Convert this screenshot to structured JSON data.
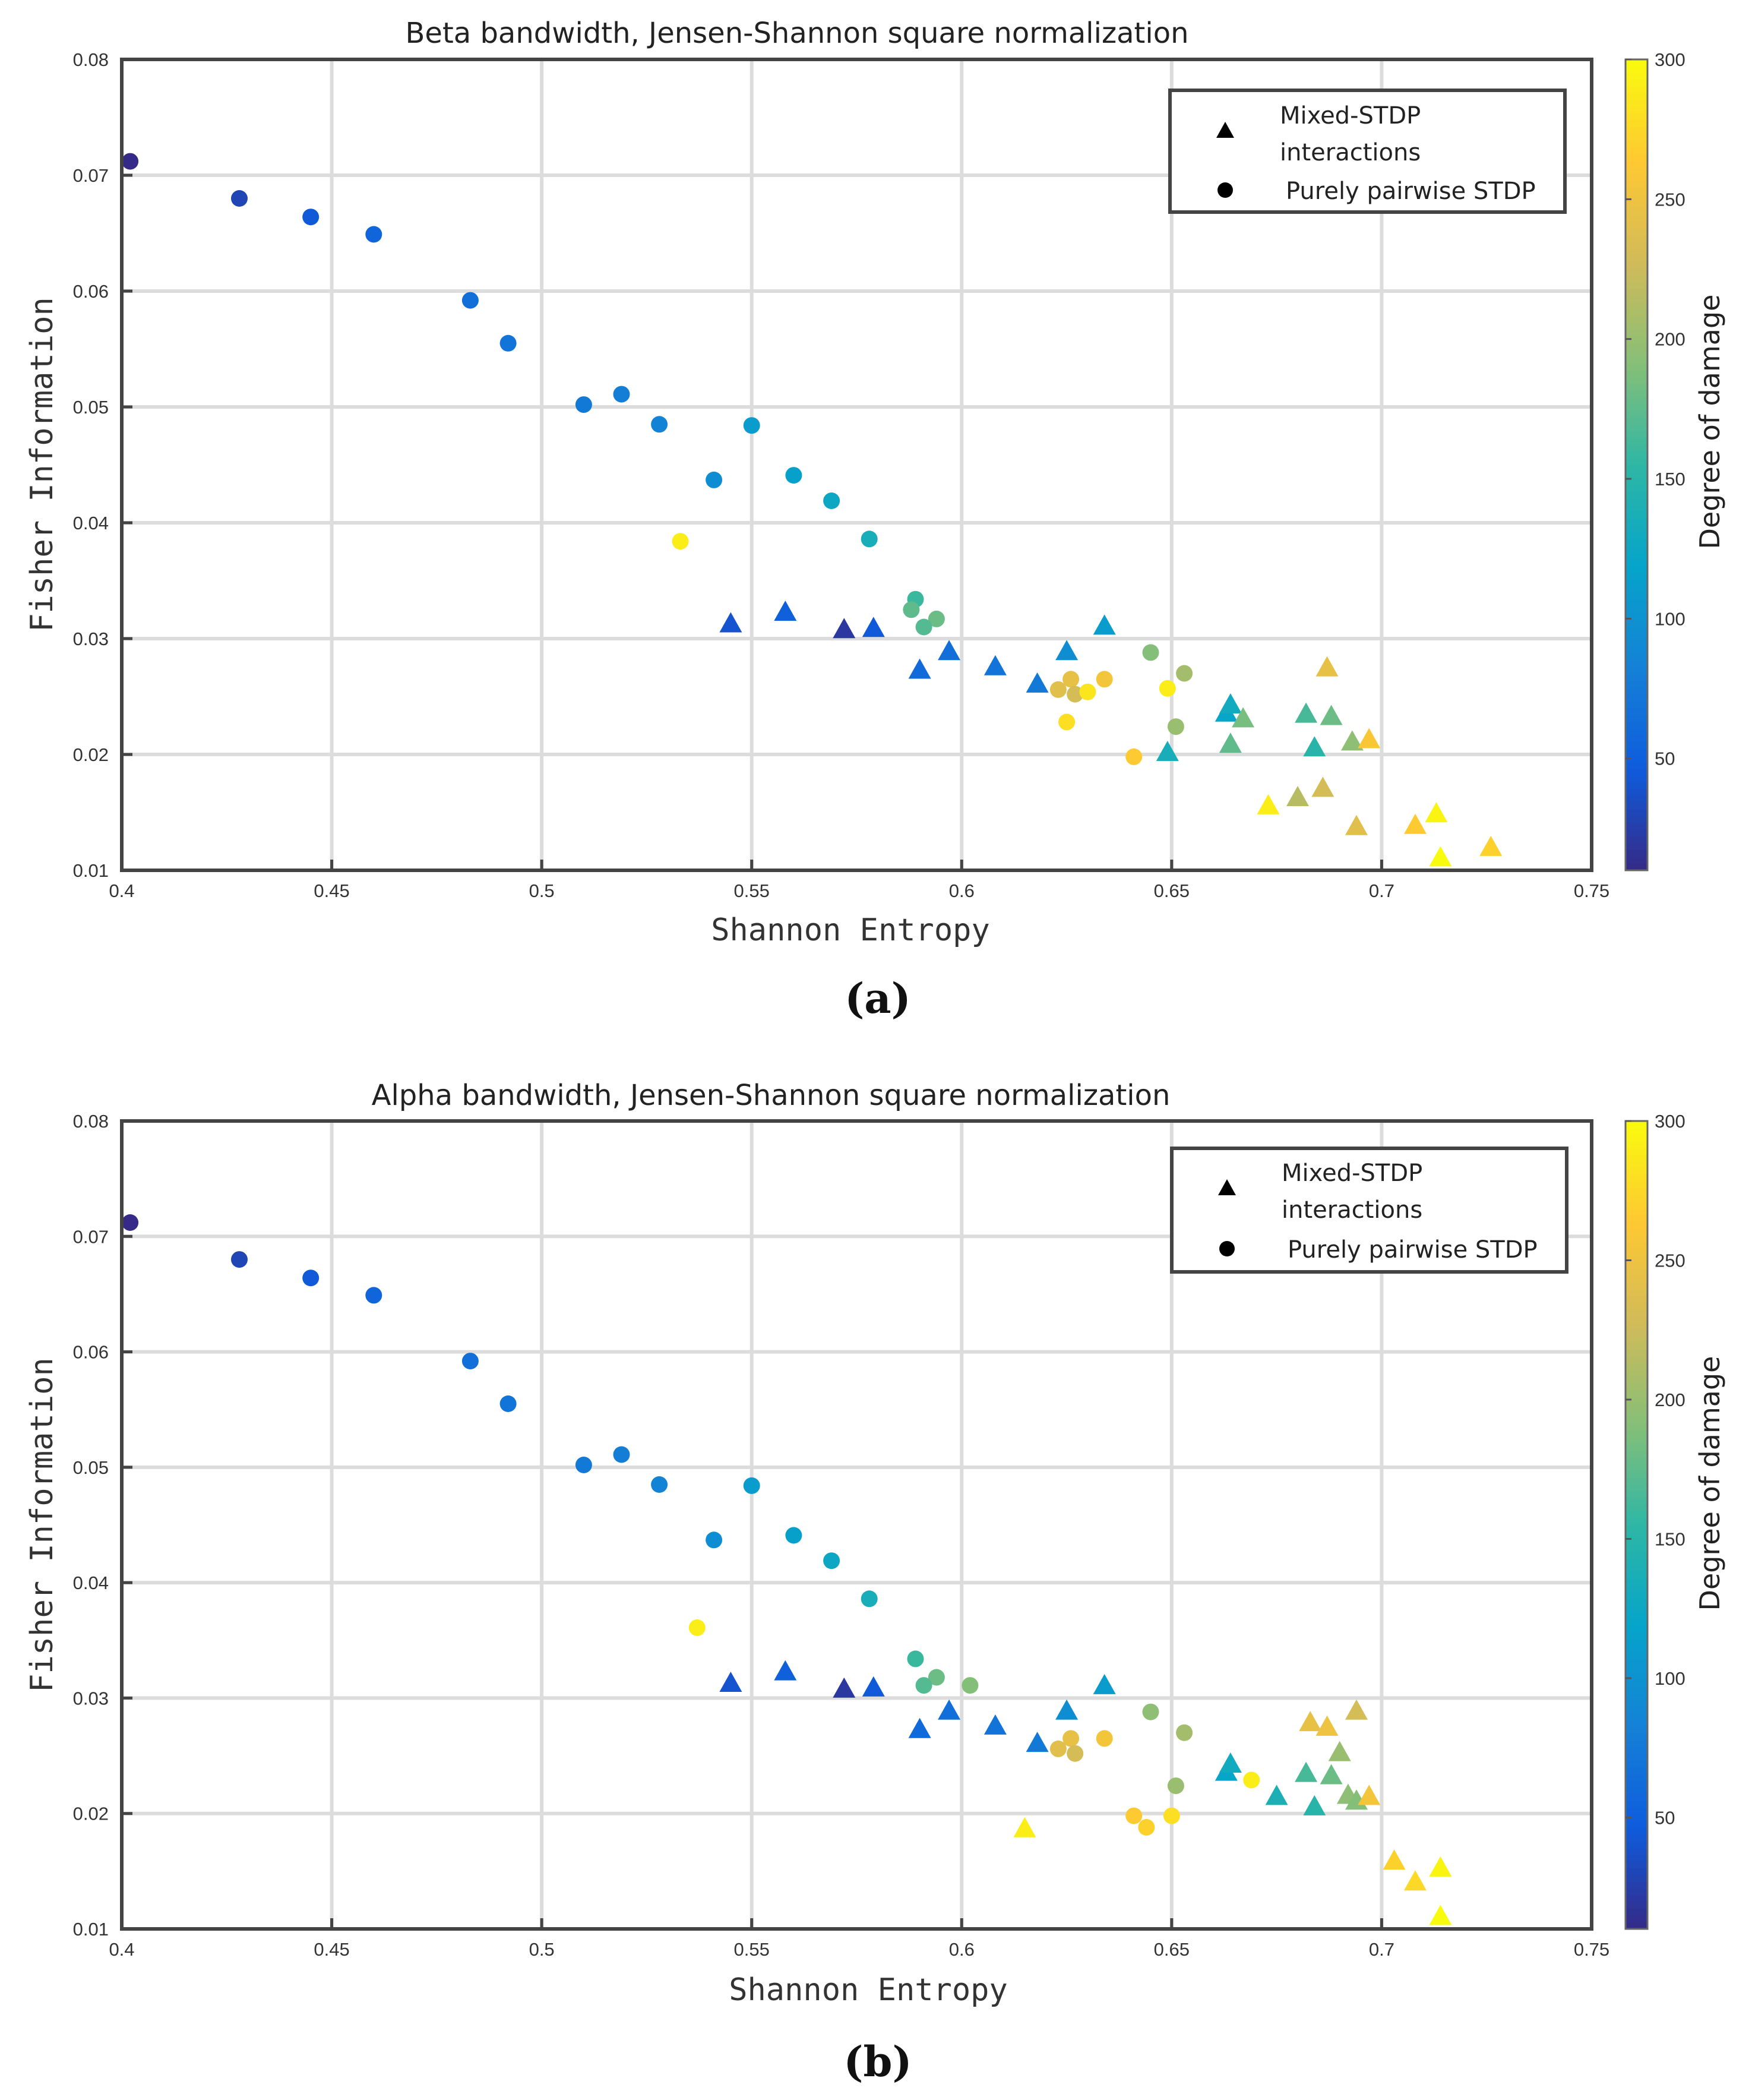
{
  "figure": {
    "colorbar_label": "Degree of damage",
    "colorbar_ticks": [
      50,
      100,
      150,
      200,
      250,
      300
    ],
    "colorbar_range": [
      10,
      300
    ],
    "colormap": [
      "#352a87",
      "#0f5cdd",
      "#1481d6",
      "#06a4ca",
      "#2eb7a4",
      "#87bf77",
      "#d1bb59",
      "#fec832",
      "#f9fb0e"
    ]
  },
  "chart_data": [
    {
      "type": "scatter",
      "panel_label": "(a)",
      "title": "Beta bandwidth, Jensen-Shannon square normalization",
      "xlabel": "Shannon Entropy",
      "ylabel": "Fisher Information",
      "xlim": [
        0.4,
        0.75
      ],
      "ylim": [
        0.01,
        0.08
      ],
      "xticks": [
        "0.4",
        "0.45",
        "0.5",
        "0.55",
        "0.6",
        "0.65",
        "0.7",
        "0.75"
      ],
      "yticks": [
        "0.01",
        "0.02",
        "0.03",
        "0.04",
        "0.05",
        "0.06",
        "0.07",
        "0.08"
      ],
      "grid": true,
      "legend": {
        "position": "top-right",
        "entries": [
          {
            "marker": "triangle",
            "lines": [
              "Mixed-STDP",
              "interactions"
            ]
          },
          {
            "marker": "circle",
            "lines": [
              "Purely pairwise STDP"
            ]
          }
        ]
      },
      "series": [
        {
          "name": "Purely pairwise STDP",
          "marker": "circle",
          "points": [
            {
              "x": 0.402,
              "y": 0.0712,
              "damage": 10
            },
            {
              "x": 0.428,
              "y": 0.068,
              "damage": 30
            },
            {
              "x": 0.445,
              "y": 0.0664,
              "damage": 45
            },
            {
              "x": 0.46,
              "y": 0.0649,
              "damage": 55
            },
            {
              "x": 0.483,
              "y": 0.0592,
              "damage": 65
            },
            {
              "x": 0.492,
              "y": 0.0555,
              "damage": 70
            },
            {
              "x": 0.51,
              "y": 0.0502,
              "damage": 75
            },
            {
              "x": 0.519,
              "y": 0.0511,
              "damage": 80
            },
            {
              "x": 0.528,
              "y": 0.0485,
              "damage": 85
            },
            {
              "x": 0.541,
              "y": 0.0437,
              "damage": 95
            },
            {
              "x": 0.55,
              "y": 0.0484,
              "damage": 110
            },
            {
              "x": 0.56,
              "y": 0.0441,
              "damage": 115
            },
            {
              "x": 0.569,
              "y": 0.0419,
              "damage": 125
            },
            {
              "x": 0.578,
              "y": 0.0386,
              "damage": 135
            },
            {
              "x": 0.533,
              "y": 0.0384,
              "damage": 290
            },
            {
              "x": 0.589,
              "y": 0.0334,
              "damage": 160
            },
            {
              "x": 0.588,
              "y": 0.0325,
              "damage": 175
            },
            {
              "x": 0.594,
              "y": 0.0317,
              "damage": 180
            },
            {
              "x": 0.591,
              "y": 0.031,
              "damage": 170
            },
            {
              "x": 0.645,
              "y": 0.0288,
              "damage": 190
            },
            {
              "x": 0.653,
              "y": 0.027,
              "damage": 205
            },
            {
              "x": 0.634,
              "y": 0.0265,
              "damage": 255
            },
            {
              "x": 0.626,
              "y": 0.0265,
              "damage": 245
            },
            {
              "x": 0.623,
              "y": 0.0256,
              "damage": 240
            },
            {
              "x": 0.627,
              "y": 0.0252,
              "damage": 230
            },
            {
              "x": 0.63,
              "y": 0.0254,
              "damage": 285
            },
            {
              "x": 0.649,
              "y": 0.0257,
              "damage": 290
            },
            {
              "x": 0.625,
              "y": 0.0228,
              "damage": 280
            },
            {
              "x": 0.651,
              "y": 0.0224,
              "damage": 200
            },
            {
              "x": 0.641,
              "y": 0.0198,
              "damage": 265
            }
          ]
        },
        {
          "name": "Mixed-STDP interactions",
          "marker": "triangle",
          "points": [
            {
              "x": 0.545,
              "y": 0.0312,
              "damage": 40
            },
            {
              "x": 0.558,
              "y": 0.0322,
              "damage": 50
            },
            {
              "x": 0.572,
              "y": 0.0307,
              "damage": 20
            },
            {
              "x": 0.579,
              "y": 0.0308,
              "damage": 45
            },
            {
              "x": 0.59,
              "y": 0.0272,
              "damage": 60
            },
            {
              "x": 0.597,
              "y": 0.0288,
              "damage": 65
            },
            {
              "x": 0.608,
              "y": 0.0275,
              "damage": 70
            },
            {
              "x": 0.618,
              "y": 0.026,
              "damage": 75
            },
            {
              "x": 0.625,
              "y": 0.0288,
              "damage": 95
            },
            {
              "x": 0.634,
              "y": 0.031,
              "damage": 110
            },
            {
              "x": 0.649,
              "y": 0.0201,
              "damage": 135
            },
            {
              "x": 0.663,
              "y": 0.0235,
              "damage": 120
            },
            {
              "x": 0.664,
              "y": 0.0242,
              "damage": 130
            },
            {
              "x": 0.667,
              "y": 0.023,
              "damage": 185
            },
            {
              "x": 0.664,
              "y": 0.0208,
              "damage": 175
            },
            {
              "x": 0.682,
              "y": 0.0234,
              "damage": 165
            },
            {
              "x": 0.688,
              "y": 0.0232,
              "damage": 180
            },
            {
              "x": 0.684,
              "y": 0.0205,
              "damage": 150
            },
            {
              "x": 0.687,
              "y": 0.0274,
              "damage": 245
            },
            {
              "x": 0.693,
              "y": 0.021,
              "damage": 195
            },
            {
              "x": 0.697,
              "y": 0.0212,
              "damage": 260
            },
            {
              "x": 0.673,
              "y": 0.0155,
              "damage": 290
            },
            {
              "x": 0.68,
              "y": 0.0162,
              "damage": 215
            },
            {
              "x": 0.686,
              "y": 0.017,
              "damage": 230
            },
            {
              "x": 0.694,
              "y": 0.0137,
              "damage": 240
            },
            {
              "x": 0.708,
              "y": 0.0138,
              "damage": 265
            },
            {
              "x": 0.713,
              "y": 0.0148,
              "damage": 295
            },
            {
              "x": 0.714,
              "y": 0.011,
              "damage": 300
            },
            {
              "x": 0.726,
              "y": 0.0119,
              "damage": 270
            }
          ]
        }
      ]
    },
    {
      "type": "scatter",
      "panel_label": "(b)",
      "title": "Alpha bandwidth, Jensen-Shannon square normalization",
      "xlabel": "Shannon Entropy",
      "ylabel": "Fisher Information",
      "xlim": [
        0.4,
        0.75
      ],
      "ylim": [
        0.01,
        0.08
      ],
      "xticks": [
        "0.4",
        "0.45",
        "0.5",
        "0.55",
        "0.6",
        "0.65",
        "0.7",
        "0.75"
      ],
      "yticks": [
        "0.01",
        "0.02",
        "0.03",
        "0.04",
        "0.05",
        "0.06",
        "0.07",
        "0.08"
      ],
      "grid": true,
      "legend": {
        "position": "top-right",
        "entries": [
          {
            "marker": "triangle",
            "lines": [
              "Mixed-STDP",
              "interactions"
            ]
          },
          {
            "marker": "circle",
            "lines": [
              "Purely pairwise STDP"
            ]
          }
        ]
      },
      "series": [
        {
          "name": "Purely pairwise STDP",
          "marker": "circle",
          "points": [
            {
              "x": 0.402,
              "y": 0.0712,
              "damage": 10
            },
            {
              "x": 0.428,
              "y": 0.068,
              "damage": 30
            },
            {
              "x": 0.445,
              "y": 0.0664,
              "damage": 45
            },
            {
              "x": 0.46,
              "y": 0.0649,
              "damage": 55
            },
            {
              "x": 0.483,
              "y": 0.0592,
              "damage": 65
            },
            {
              "x": 0.492,
              "y": 0.0555,
              "damage": 70
            },
            {
              "x": 0.51,
              "y": 0.0502,
              "damage": 75
            },
            {
              "x": 0.519,
              "y": 0.0511,
              "damage": 80
            },
            {
              "x": 0.528,
              "y": 0.0485,
              "damage": 85
            },
            {
              "x": 0.541,
              "y": 0.0437,
              "damage": 95
            },
            {
              "x": 0.55,
              "y": 0.0484,
              "damage": 110
            },
            {
              "x": 0.56,
              "y": 0.0441,
              "damage": 115
            },
            {
              "x": 0.569,
              "y": 0.0419,
              "damage": 125
            },
            {
              "x": 0.578,
              "y": 0.0386,
              "damage": 135
            },
            {
              "x": 0.537,
              "y": 0.0361,
              "damage": 290
            },
            {
              "x": 0.589,
              "y": 0.0334,
              "damage": 160
            },
            {
              "x": 0.594,
              "y": 0.0318,
              "damage": 180
            },
            {
              "x": 0.591,
              "y": 0.0311,
              "damage": 170
            },
            {
              "x": 0.602,
              "y": 0.0311,
              "damage": 190
            },
            {
              "x": 0.645,
              "y": 0.0288,
              "damage": 195
            },
            {
              "x": 0.653,
              "y": 0.027,
              "damage": 205
            },
            {
              "x": 0.634,
              "y": 0.0265,
              "damage": 255
            },
            {
              "x": 0.626,
              "y": 0.0265,
              "damage": 245
            },
            {
              "x": 0.623,
              "y": 0.0256,
              "damage": 240
            },
            {
              "x": 0.627,
              "y": 0.0252,
              "damage": 230
            },
            {
              "x": 0.651,
              "y": 0.0224,
              "damage": 200
            },
            {
              "x": 0.669,
              "y": 0.0229,
              "damage": 290
            },
            {
              "x": 0.641,
              "y": 0.0198,
              "damage": 265
            },
            {
              "x": 0.65,
              "y": 0.0198,
              "damage": 280
            },
            {
              "x": 0.644,
              "y": 0.0188,
              "damage": 270
            }
          ]
        },
        {
          "name": "Mixed-STDP interactions",
          "marker": "triangle",
          "points": [
            {
              "x": 0.545,
              "y": 0.0312,
              "damage": 40
            },
            {
              "x": 0.558,
              "y": 0.0322,
              "damage": 50
            },
            {
              "x": 0.572,
              "y": 0.0307,
              "damage": 20
            },
            {
              "x": 0.579,
              "y": 0.0308,
              "damage": 45
            },
            {
              "x": 0.59,
              "y": 0.0272,
              "damage": 60
            },
            {
              "x": 0.597,
              "y": 0.0288,
              "damage": 65
            },
            {
              "x": 0.608,
              "y": 0.0275,
              "damage": 70
            },
            {
              "x": 0.618,
              "y": 0.026,
              "damage": 75
            },
            {
              "x": 0.625,
              "y": 0.0288,
              "damage": 95
            },
            {
              "x": 0.634,
              "y": 0.031,
              "damage": 110
            },
            {
              "x": 0.615,
              "y": 0.0186,
              "damage": 290
            },
            {
              "x": 0.663,
              "y": 0.0235,
              "damage": 120
            },
            {
              "x": 0.664,
              "y": 0.0242,
              "damage": 130
            },
            {
              "x": 0.675,
              "y": 0.0214,
              "damage": 140
            },
            {
              "x": 0.684,
              "y": 0.0205,
              "damage": 150
            },
            {
              "x": 0.682,
              "y": 0.0234,
              "damage": 165
            },
            {
              "x": 0.688,
              "y": 0.0232,
              "damage": 180
            },
            {
              "x": 0.683,
              "y": 0.0278,
              "damage": 245
            },
            {
              "x": 0.687,
              "y": 0.0274,
              "damage": 250
            },
            {
              "x": 0.694,
              "y": 0.0288,
              "damage": 230
            },
            {
              "x": 0.69,
              "y": 0.0252,
              "damage": 200
            },
            {
              "x": 0.692,
              "y": 0.0215,
              "damage": 195
            },
            {
              "x": 0.694,
              "y": 0.021,
              "damage": 190
            },
            {
              "x": 0.697,
              "y": 0.0214,
              "damage": 255
            },
            {
              "x": 0.703,
              "y": 0.0158,
              "damage": 270
            },
            {
              "x": 0.708,
              "y": 0.014,
              "damage": 275
            },
            {
              "x": 0.714,
              "y": 0.0152,
              "damage": 295
            },
            {
              "x": 0.714,
              "y": 0.011,
              "damage": 300
            }
          ]
        }
      ]
    }
  ]
}
